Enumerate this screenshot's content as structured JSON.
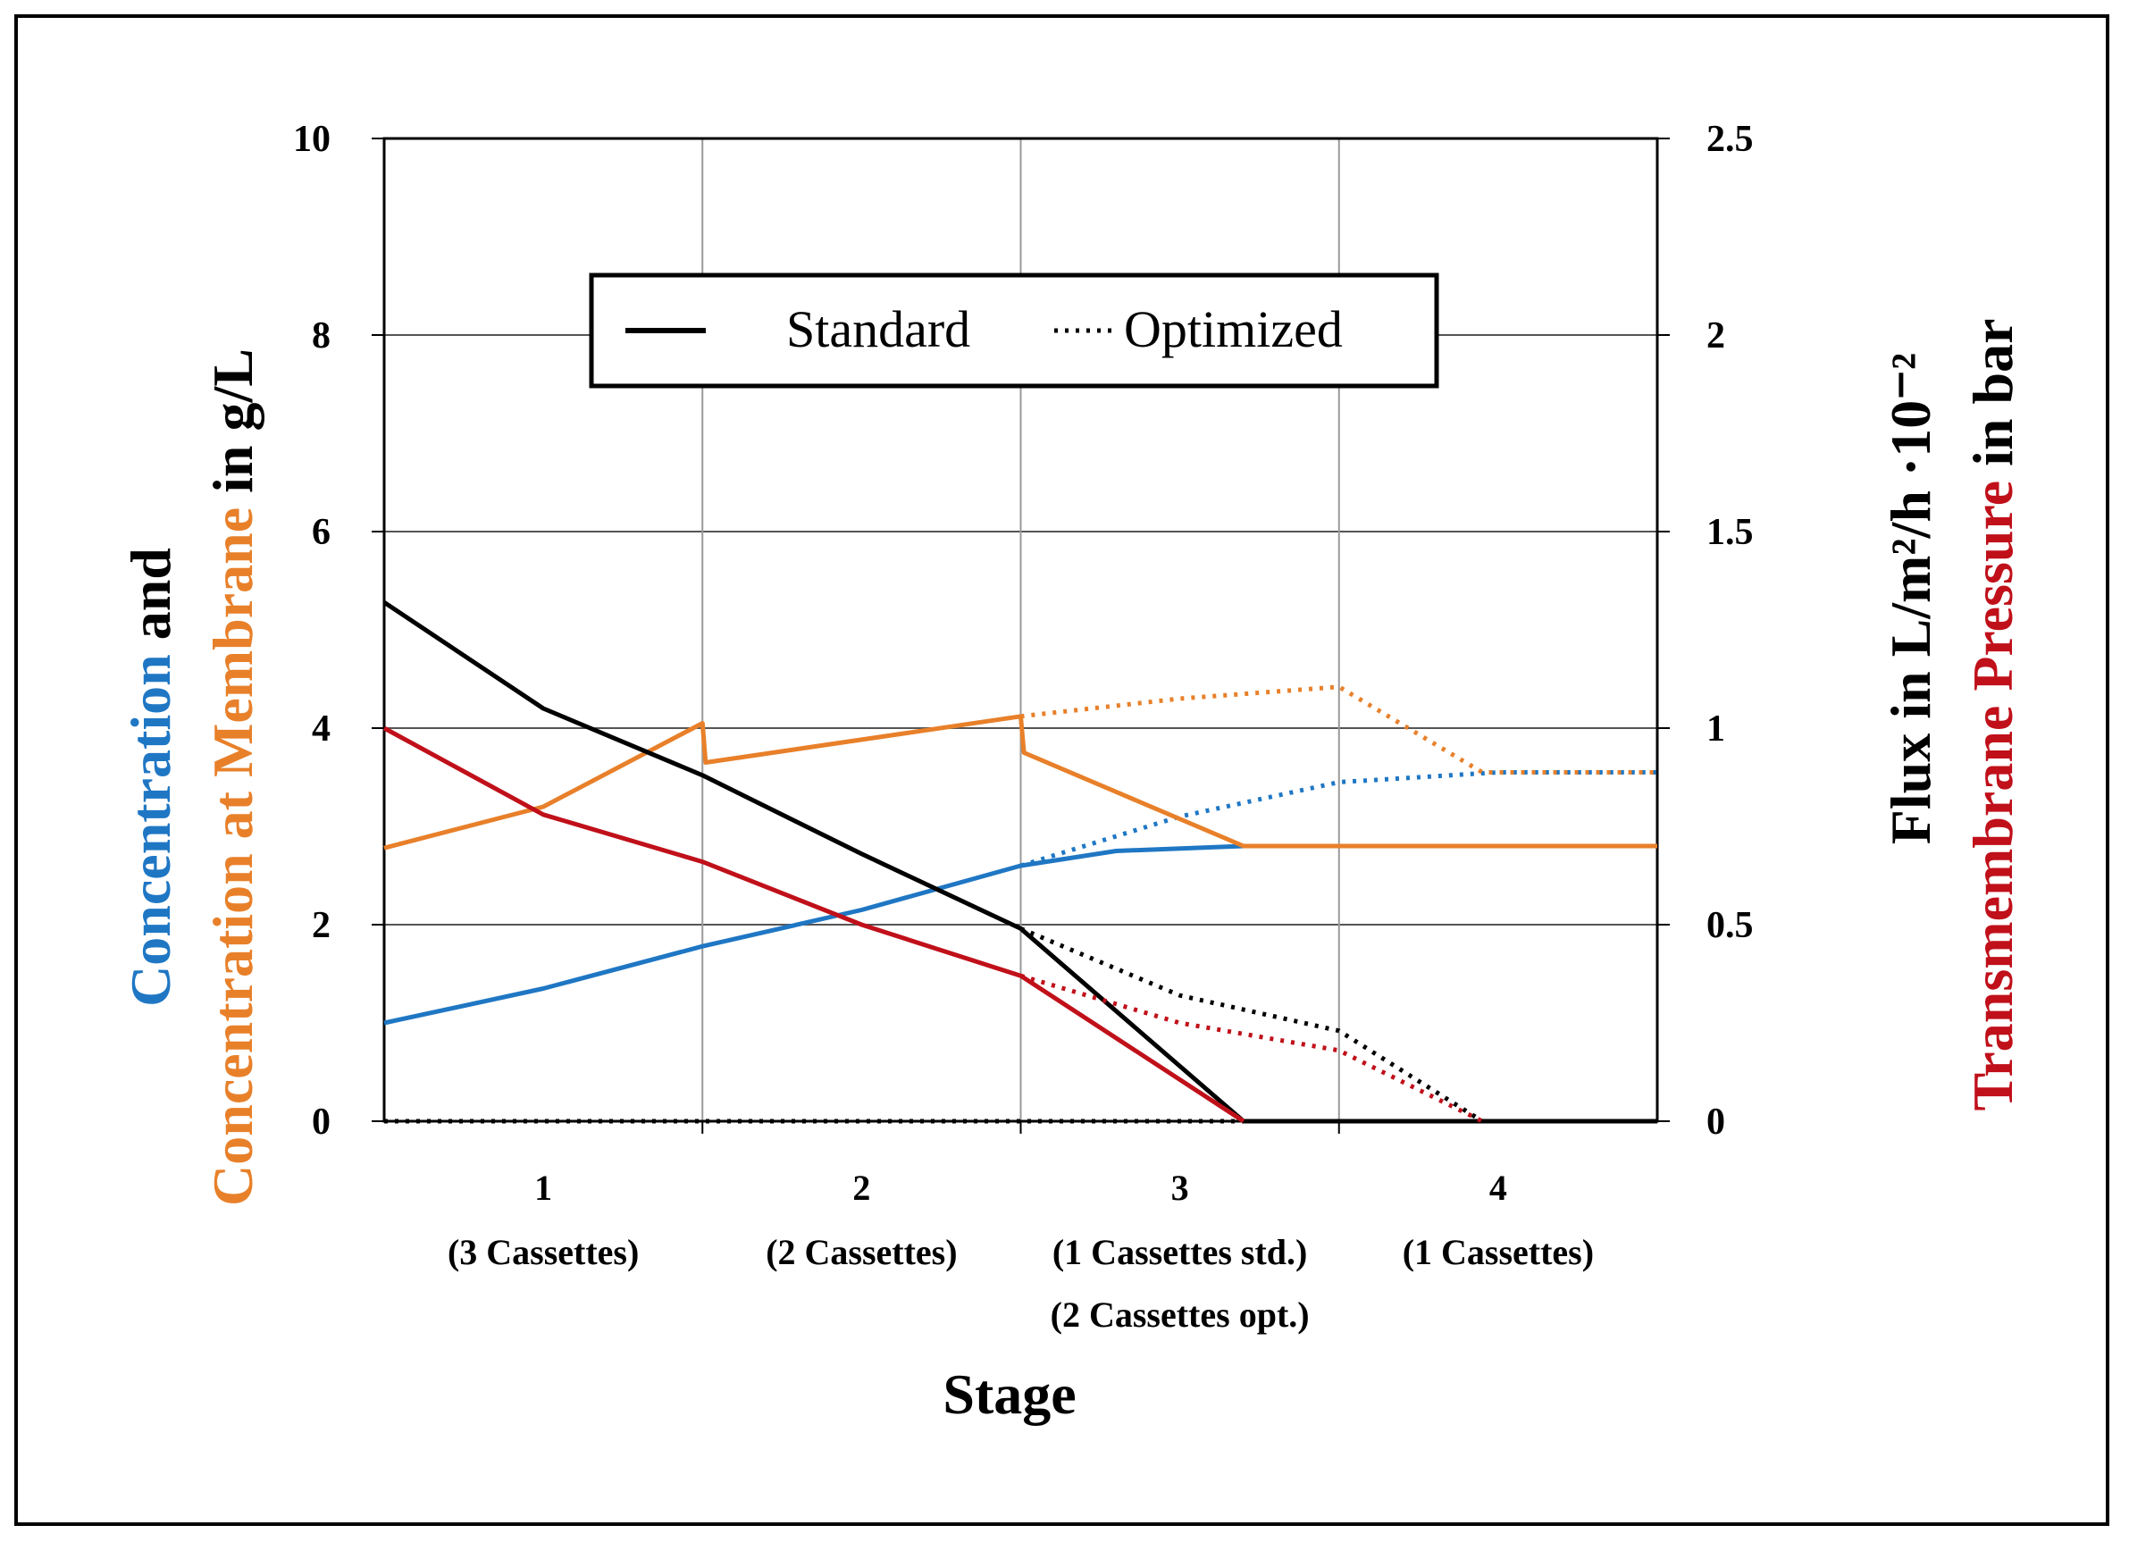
{
  "chart_data": {
    "type": "line",
    "xlabel": "Stage",
    "stages": [
      {
        "number": "1",
        "sub": [
          "(3 Cassettes)"
        ]
      },
      {
        "number": "2",
        "sub": [
          "(2 Cassettes)"
        ]
      },
      {
        "number": "3",
        "sub": [
          "(1 Cassettes std.)",
          "(2 Cassettes opt.)"
        ]
      },
      {
        "number": "4",
        "sub": [
          "(1 Cassettes)"
        ]
      }
    ],
    "x_range": [
      0,
      4
    ],
    "x_boundaries": [
      1,
      2,
      3
    ],
    "y_left": {
      "ticks": [
        "0",
        "2",
        "4",
        "6",
        "8",
        "10"
      ],
      "range": [
        0,
        10
      ],
      "title_parts": [
        {
          "text": "Concentration",
          "color": "#1f77c4",
          "line": 2
        },
        {
          "text": " and",
          "color": "#000000",
          "line": 2
        },
        {
          "text": "Concentration at Membrane",
          "color": "#e8802a",
          "line": 1
        },
        {
          "text": " in  g/L",
          "color": "#000000",
          "line": 1
        }
      ]
    },
    "y_right": {
      "ticks": [
        "0",
        "0.5",
        "1",
        "1.5",
        "2",
        "2.5"
      ],
      "range": [
        0,
        2.5
      ],
      "title_line1": "Flux in  L/m²/h ·10⁻²",
      "title_line2_parts": [
        {
          "text": "Transmembrane Pressure",
          "color": "#c0101a"
        },
        {
          "text": " in bar",
          "color": "#000000"
        }
      ]
    },
    "legend": {
      "standard": "Standard",
      "optimized": "Optimized",
      "location": "top-center"
    },
    "series": [
      {
        "name": "Concentration (Standard)",
        "color": "#1f77c4",
        "style": "solid",
        "axis": "left",
        "points": [
          [
            0,
            1.0
          ],
          [
            0.5,
            1.35
          ],
          [
            1.0,
            1.78
          ],
          [
            1.5,
            2.15
          ],
          [
            2.0,
            2.6
          ],
          [
            2.3,
            2.75
          ],
          [
            2.7,
            2.8
          ],
          [
            4.0,
            2.8
          ]
        ]
      },
      {
        "name": "Concentration (Optimized)",
        "color": "#1f77c4",
        "style": "dotted",
        "axis": "left",
        "points": [
          [
            2.0,
            2.6
          ],
          [
            2.5,
            3.1
          ],
          [
            3.0,
            3.45
          ],
          [
            3.5,
            3.55
          ],
          [
            4.0,
            3.55
          ]
        ]
      },
      {
        "name": "Concentration at Membrane (Standard)",
        "color": "#e8802a",
        "style": "solid",
        "axis": "left",
        "points": [
          [
            0,
            2.78
          ],
          [
            0.5,
            3.2
          ],
          [
            1.0,
            4.05
          ],
          [
            1.01,
            3.65
          ],
          [
            2.0,
            4.12
          ],
          [
            2.01,
            3.75
          ],
          [
            2.7,
            2.8
          ],
          [
            4.0,
            2.8
          ]
        ]
      },
      {
        "name": "Concentration at Membrane (Optimized)",
        "color": "#e8802a",
        "style": "dotted",
        "axis": "left",
        "points": [
          [
            2.0,
            4.12
          ],
          [
            2.5,
            4.3
          ],
          [
            3.0,
            4.42
          ],
          [
            3.45,
            3.55
          ],
          [
            4.0,
            3.55
          ]
        ]
      },
      {
        "name": "Flux (Standard)",
        "color": "#000000",
        "style": "solid",
        "axis": "right",
        "points": [
          [
            0,
            1.32
          ],
          [
            0.5,
            1.05
          ],
          [
            1.0,
            0.88
          ],
          [
            1.5,
            0.68
          ],
          [
            2.0,
            0.49
          ],
          [
            2.7,
            0.0
          ],
          [
            4.0,
            0.0
          ]
        ]
      },
      {
        "name": "Flux (Optimized)",
        "color": "#000000",
        "style": "dotted",
        "axis": "right",
        "points": [
          [
            2.0,
            0.49
          ],
          [
            2.5,
            0.32
          ],
          [
            3.0,
            0.23
          ],
          [
            3.45,
            0.0
          ],
          [
            4.0,
            0.0
          ]
        ]
      },
      {
        "name": "Flux baseline (Optimized)",
        "color": "#000000",
        "style": "dotted",
        "axis": "right",
        "points": [
          [
            0,
            0.0
          ],
          [
            2.7,
            0.0
          ]
        ]
      },
      {
        "name": "TMP (Standard)",
        "color": "#c0101a",
        "style": "solid",
        "axis": "right",
        "points": [
          [
            0,
            1.0
          ],
          [
            0.5,
            0.78
          ],
          [
            1.0,
            0.66
          ],
          [
            1.5,
            0.5
          ],
          [
            2.0,
            0.37
          ],
          [
            2.7,
            0.0
          ]
        ]
      },
      {
        "name": "TMP (Optimized)",
        "color": "#c0101a",
        "style": "dotted",
        "axis": "right",
        "points": [
          [
            2.0,
            0.37
          ],
          [
            2.5,
            0.25
          ],
          [
            3.0,
            0.18
          ],
          [
            3.45,
            0.0
          ]
        ]
      }
    ]
  }
}
